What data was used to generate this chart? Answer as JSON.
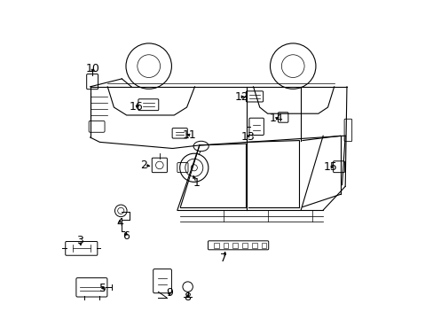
{
  "background_color": "#ffffff",
  "line_color": "#000000",
  "label_color": "#000000",
  "font_size": 9
}
